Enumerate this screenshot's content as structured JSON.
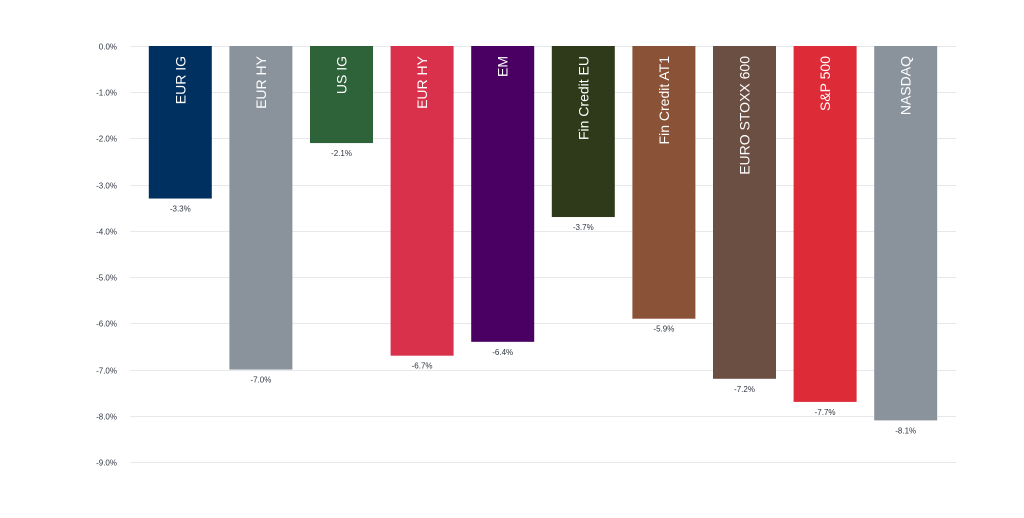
{
  "chart_data": {
    "type": "bar",
    "title": "",
    "xlabel": "",
    "ylabel": "",
    "ylim": [
      -9.0,
      0.0
    ],
    "grid": true,
    "y_ticks": [
      "0.0%",
      "-1.0%",
      "-2.0%",
      "-3.0%",
      "-4.0%",
      "-5.0%",
      "-6.0%",
      "-7.0%",
      "-8.0%",
      "-9.0%"
    ],
    "categories": [
      "EUR IG",
      "EUR HY",
      "US IG",
      "EUR HY",
      "EM",
      "Fin Credit EU",
      "Fin Credit AT1",
      "EURO STOXX 600",
      "S&P 500",
      "NASDAQ"
    ],
    "values": [
      -3.3,
      -7.0,
      -2.1,
      -6.7,
      -6.4,
      -3.7,
      -5.9,
      -7.2,
      -7.7,
      -8.1
    ],
    "value_labels": [
      "-3.3%",
      "-7.0%",
      "-2.1%",
      "-6.7%",
      "-6.4%",
      "-3.7%",
      "-5.9%",
      "-7.2%",
      "-7.7%",
      "-8.1%"
    ],
    "colors": [
      "#00305f",
      "#8a939c",
      "#2e6238",
      "#d9314b",
      "#4a0063",
      "#2f3a1b",
      "#8a5236",
      "#6b4f43",
      "#dd2b37",
      "#8a939c"
    ]
  }
}
